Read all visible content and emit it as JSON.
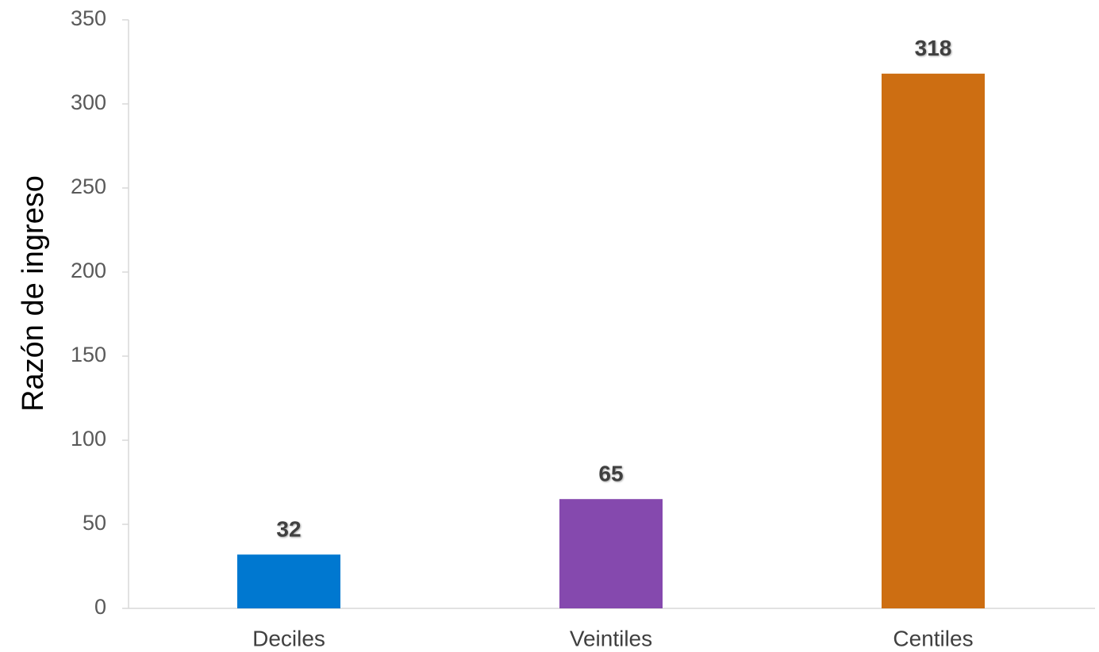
{
  "chart_data": {
    "type": "bar",
    "title": "",
    "xlabel": "",
    "ylabel": "Razón de ingreso",
    "categories": [
      "Deciles",
      "Veintiles",
      "Centiles"
    ],
    "values": [
      32,
      65,
      318
    ],
    "data_labels": [
      "32",
      "65",
      "318"
    ],
    "colors": [
      "#0078D0",
      "#8549AE",
      "#CD6E12"
    ],
    "ylim": [
      0,
      350
    ],
    "yticks": [
      0,
      50,
      100,
      150,
      200,
      250,
      300,
      350
    ],
    "ytick_labels": [
      "0",
      "50",
      "100",
      "150",
      "200",
      "250",
      "300",
      "350"
    ],
    "grid": false,
    "legend": "none"
  }
}
